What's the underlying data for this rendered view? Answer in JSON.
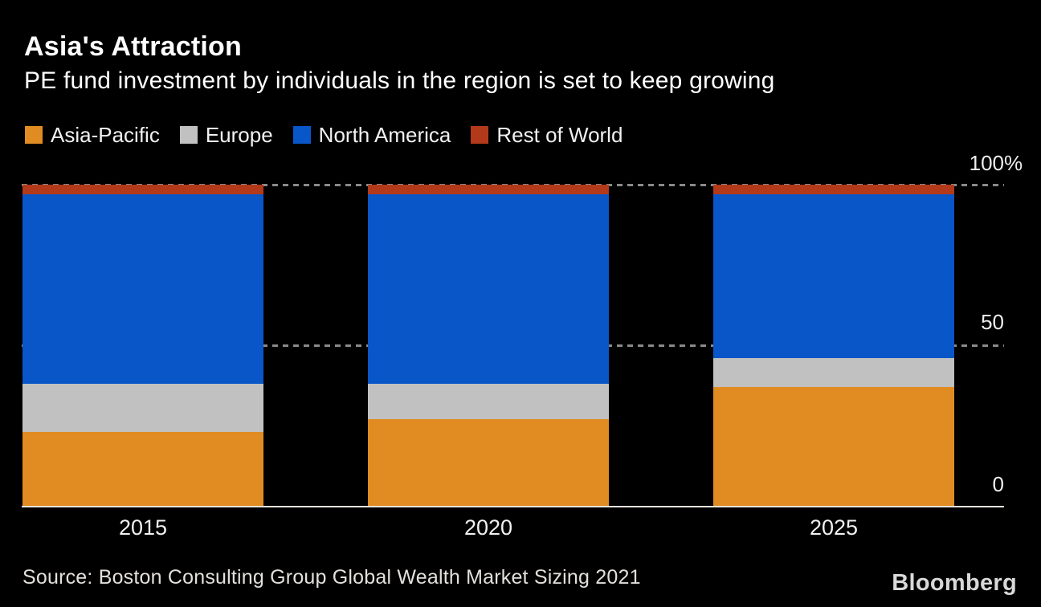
{
  "header": {
    "title": "Asia's Attraction",
    "subtitle": "PE fund investment by individuals in the region is set to keep growing"
  },
  "chart_data": {
    "type": "bar",
    "stacked": true,
    "percent_stacked": true,
    "title": "Asia's Attraction",
    "subtitle": "PE fund investment by individuals in the region is set to keep growing",
    "categories": [
      "2015",
      "2020",
      "2025"
    ],
    "series": [
      {
        "name": "Asia-Pacific",
        "color": "#E08C22",
        "values": [
          23,
          27,
          37
        ]
      },
      {
        "name": "Europe",
        "color": "#C1C1C1",
        "values": [
          15,
          11,
          9
        ]
      },
      {
        "name": "North America",
        "color": "#0956C8",
        "values": [
          59,
          59,
          51
        ]
      },
      {
        "name": "Rest of World",
        "color": "#B23A1B",
        "values": [
          3,
          3,
          3
        ]
      }
    ],
    "xlabel": "",
    "ylabel": "",
    "ylim": [
      0,
      100
    ],
    "yticks": [
      {
        "value": 100,
        "label": "100",
        "suffix": "%"
      },
      {
        "value": 50,
        "label": "50",
        "suffix": ""
      },
      {
        "value": 0,
        "label": "0",
        "suffix": ""
      }
    ],
    "grid": "horizontal dotted at 50 and 100, solid baseline at 0",
    "legend_position": "top-left"
  },
  "footer": {
    "source": "Source: Boston Consulting Group Global Wealth Market Sizing 2021",
    "brand": "Bloomberg"
  },
  "colors": {
    "background": "#000000",
    "text": "#FFFFFF",
    "axis_line": "#E8E2DC",
    "grid_dot": "#8A8A8A"
  }
}
